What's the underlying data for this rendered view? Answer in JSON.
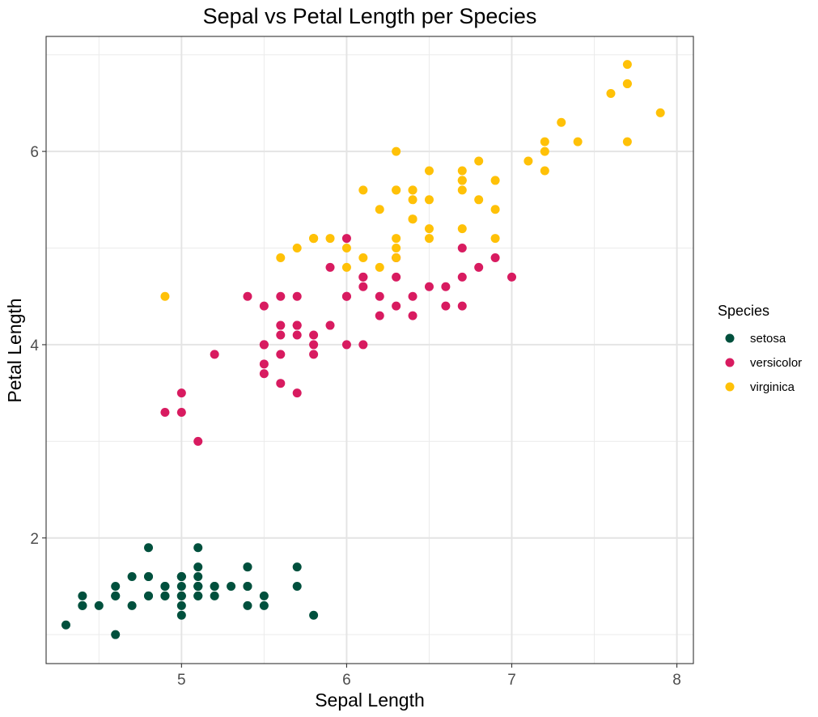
{
  "chart_data": {
    "type": "scatter",
    "title": "Sepal vs Petal Length per Species",
    "xlabel": "Sepal Length",
    "ylabel": "Petal Length",
    "xlim": [
      4.18,
      8.1
    ],
    "ylim": [
      0.7,
      7.19
    ],
    "xticks": [
      5,
      6,
      7,
      8
    ],
    "xtick_labels": [
      "5",
      "6",
      "7",
      "8"
    ],
    "xminor": [
      4.5,
      5.5,
      6.5,
      7.5
    ],
    "yticks": [
      2,
      4,
      6
    ],
    "ytick_labels": [
      "2",
      "4",
      "6"
    ],
    "yminor": [
      1,
      3,
      5,
      7
    ],
    "grid": true,
    "legend": {
      "title": "Species",
      "position": "right"
    },
    "series": [
      {
        "name": "setosa",
        "color": "#00503D",
        "points": [
          [
            5.1,
            1.4
          ],
          [
            4.9,
            1.4
          ],
          [
            4.7,
            1.3
          ],
          [
            4.6,
            1.5
          ],
          [
            5.0,
            1.4
          ],
          [
            5.4,
            1.7
          ],
          [
            4.6,
            1.4
          ],
          [
            5.0,
            1.5
          ],
          [
            4.4,
            1.4
          ],
          [
            4.9,
            1.5
          ],
          [
            5.4,
            1.5
          ],
          [
            4.8,
            1.6
          ],
          [
            4.8,
            1.4
          ],
          [
            4.3,
            1.1
          ],
          [
            5.8,
            1.2
          ],
          [
            5.7,
            1.5
          ],
          [
            5.4,
            1.3
          ],
          [
            5.1,
            1.4
          ],
          [
            5.7,
            1.7
          ],
          [
            5.1,
            1.5
          ],
          [
            5.4,
            1.7
          ],
          [
            5.1,
            1.5
          ],
          [
            4.6,
            1.0
          ],
          [
            5.1,
            1.7
          ],
          [
            4.8,
            1.9
          ],
          [
            5.0,
            1.6
          ],
          [
            5.0,
            1.6
          ],
          [
            5.2,
            1.5
          ],
          [
            5.2,
            1.4
          ],
          [
            4.7,
            1.6
          ],
          [
            4.8,
            1.6
          ],
          [
            5.4,
            1.5
          ],
          [
            5.2,
            1.5
          ],
          [
            5.5,
            1.4
          ],
          [
            4.9,
            1.5
          ],
          [
            5.0,
            1.2
          ],
          [
            5.5,
            1.3
          ],
          [
            4.9,
            1.4
          ],
          [
            4.4,
            1.3
          ],
          [
            5.1,
            1.5
          ],
          [
            5.0,
            1.3
          ],
          [
            4.5,
            1.3
          ],
          [
            4.4,
            1.3
          ],
          [
            5.0,
            1.6
          ],
          [
            5.1,
            1.9
          ],
          [
            4.8,
            1.4
          ],
          [
            5.1,
            1.6
          ],
          [
            4.6,
            1.4
          ],
          [
            5.3,
            1.5
          ],
          [
            5.0,
            1.4
          ]
        ]
      },
      {
        "name": "versicolor",
        "color": "#D81B60",
        "points": [
          [
            7.0,
            4.7
          ],
          [
            6.4,
            4.5
          ],
          [
            6.9,
            4.9
          ],
          [
            5.5,
            4.0
          ],
          [
            6.5,
            4.6
          ],
          [
            5.7,
            4.5
          ],
          [
            6.3,
            4.7
          ],
          [
            4.9,
            3.3
          ],
          [
            6.6,
            4.6
          ],
          [
            5.2,
            3.9
          ],
          [
            5.0,
            3.5
          ],
          [
            5.9,
            4.2
          ],
          [
            6.0,
            4.0
          ],
          [
            6.1,
            4.7
          ],
          [
            5.6,
            3.6
          ],
          [
            6.7,
            4.4
          ],
          [
            5.6,
            4.5
          ],
          [
            5.8,
            4.1
          ],
          [
            6.2,
            4.5
          ],
          [
            5.6,
            3.9
          ],
          [
            5.9,
            4.8
          ],
          [
            6.1,
            4.0
          ],
          [
            6.3,
            4.9
          ],
          [
            6.1,
            4.7
          ],
          [
            6.4,
            4.3
          ],
          [
            6.6,
            4.4
          ],
          [
            6.8,
            4.8
          ],
          [
            6.7,
            5.0
          ],
          [
            6.0,
            4.5
          ],
          [
            5.7,
            3.5
          ],
          [
            5.5,
            3.8
          ],
          [
            5.5,
            3.7
          ],
          [
            5.8,
            3.9
          ],
          [
            6.0,
            5.1
          ],
          [
            5.4,
            4.5
          ],
          [
            6.0,
            4.5
          ],
          [
            6.7,
            4.7
          ],
          [
            6.3,
            4.4
          ],
          [
            5.6,
            4.1
          ],
          [
            5.5,
            4.0
          ],
          [
            5.5,
            4.4
          ],
          [
            6.1,
            4.6
          ],
          [
            5.8,
            4.0
          ],
          [
            5.0,
            3.3
          ],
          [
            5.6,
            4.2
          ],
          [
            5.7,
            4.2
          ],
          [
            5.7,
            4.2
          ],
          [
            6.2,
            4.3
          ],
          [
            5.1,
            3.0
          ],
          [
            5.7,
            4.1
          ]
        ]
      },
      {
        "name": "virginica",
        "color": "#FFC107",
        "points": [
          [
            6.3,
            6.0
          ],
          [
            5.8,
            5.1
          ],
          [
            7.1,
            5.9
          ],
          [
            6.3,
            5.6
          ],
          [
            6.5,
            5.8
          ],
          [
            7.6,
            6.6
          ],
          [
            4.9,
            4.5
          ],
          [
            7.3,
            6.3
          ],
          [
            6.7,
            5.8
          ],
          [
            7.2,
            6.1
          ],
          [
            6.5,
            5.1
          ],
          [
            6.4,
            5.3
          ],
          [
            6.8,
            5.5
          ],
          [
            5.7,
            5.0
          ],
          [
            5.8,
            5.1
          ],
          [
            6.4,
            5.3
          ],
          [
            6.5,
            5.5
          ],
          [
            7.7,
            6.7
          ],
          [
            7.7,
            6.9
          ],
          [
            6.0,
            5.0
          ],
          [
            6.9,
            5.7
          ],
          [
            5.6,
            4.9
          ],
          [
            7.7,
            6.7
          ],
          [
            6.3,
            4.9
          ],
          [
            6.7,
            5.7
          ],
          [
            7.2,
            6.0
          ],
          [
            6.2,
            4.8
          ],
          [
            6.1,
            4.9
          ],
          [
            6.4,
            5.6
          ],
          [
            7.2,
            5.8
          ],
          [
            7.4,
            6.1
          ],
          [
            7.9,
            6.4
          ],
          [
            6.4,
            5.6
          ],
          [
            6.3,
            5.1
          ],
          [
            6.1,
            5.6
          ],
          [
            7.7,
            6.1
          ],
          [
            6.3,
            5.6
          ],
          [
            6.4,
            5.5
          ],
          [
            6.0,
            4.8
          ],
          [
            6.9,
            5.4
          ],
          [
            6.7,
            5.6
          ],
          [
            6.9,
            5.1
          ],
          [
            5.8,
            5.1
          ],
          [
            6.8,
            5.9
          ],
          [
            6.7,
            5.7
          ],
          [
            6.7,
            5.2
          ],
          [
            6.3,
            5.0
          ],
          [
            6.5,
            5.2
          ],
          [
            6.2,
            5.4
          ],
          [
            5.9,
            5.1
          ]
        ]
      }
    ]
  }
}
